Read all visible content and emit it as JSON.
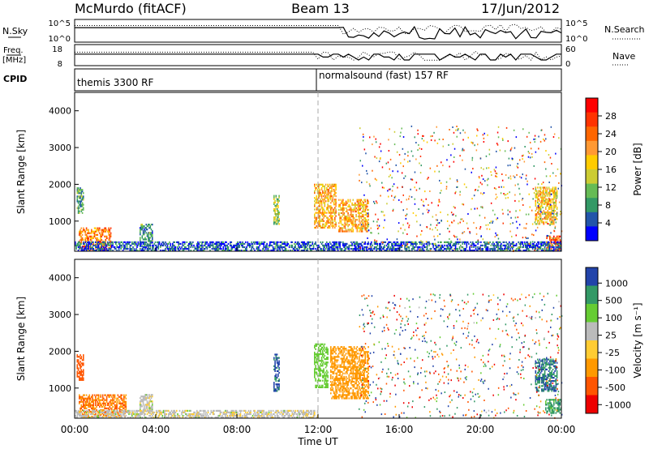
{
  "header": {
    "station": "McMurdo (fitACF)",
    "beam": "Beam 13",
    "date": "17/Jun/2012"
  },
  "params": {
    "nsky_label": "N.Sky",
    "nsky_ticks": [
      "10^5",
      "10^0"
    ],
    "nsearch_label": "N.Search",
    "nsearch_ticks": [
      "10^5",
      "10^0"
    ],
    "freq_label": "Freq.",
    "freq_unit": "[MHz]",
    "freq_ticks": [
      "18",
      "8"
    ],
    "nave_label": "Nave",
    "nave_ticks": [
      "60",
      "0"
    ],
    "cpid_label": "CPID",
    "cpid_segments": [
      {
        "label": "themis 3300 RF",
        "start_hour": 0
      },
      {
        "label": "normalsound (fast) 157 RF",
        "start_hour": 12
      }
    ]
  },
  "axes": {
    "x_ticks": [
      "00:00",
      "04:00",
      "08:00",
      "12:00",
      "16:00",
      "20:00",
      "00:00"
    ],
    "x_label": "Time UT",
    "y_ticks": [
      "1000",
      "2000",
      "3000",
      "4000"
    ],
    "y_label": "Slant Range [km]"
  },
  "power_colorbar": {
    "label": "Power [dB]",
    "ticks": [
      "28",
      "24",
      "20",
      "16",
      "12",
      "8",
      "4"
    ],
    "colors": [
      "#ff0000",
      "#ff3300",
      "#ff6600",
      "#ff9933",
      "#ffcc00",
      "#cccc33",
      "#66bb55",
      "#339966",
      "#2255aa",
      "#0000ff"
    ]
  },
  "velocity_colorbar": {
    "label": "Velocity [m s⁻¹]",
    "ticks": [
      "1000",
      "500",
      "100",
      "25",
      "-25",
      "-100",
      "-500",
      "-1000"
    ],
    "colors": [
      "#2244aa",
      "#339966",
      "#66cc33",
      "#bbbbbb",
      "#ffcc33",
      "#ff9900",
      "#ff5500",
      "#ee0000"
    ]
  },
  "chart_data": [
    {
      "type": "heatmap",
      "panel": "power",
      "xlabel": "Time UT",
      "ylabel": "Slant Range [km]",
      "xlim_hours": [
        0,
        24
      ],
      "ylim_km": [
        180,
        4500
      ],
      "value_label": "Power [dB]",
      "regions": [
        {
          "t0": 0.2,
          "t1": 1.8,
          "r0": 200,
          "r1": 800,
          "level": 0.7
        },
        {
          "t0": 0.1,
          "t1": 0.4,
          "r0": 1200,
          "r1": 1900,
          "level": 0.3
        },
        {
          "t0": 3.2,
          "t1": 3.8,
          "r0": 300,
          "r1": 900,
          "level": 0.25
        },
        {
          "t0": 9.8,
          "t1": 10.1,
          "r0": 900,
          "r1": 1700,
          "level": 0.4
        },
        {
          "t0": 11.8,
          "t1": 12.9,
          "r0": 800,
          "r1": 2000,
          "level": 0.6
        },
        {
          "t0": 13.0,
          "t1": 14.5,
          "r0": 700,
          "r1": 1600,
          "level": 0.6
        },
        {
          "t0": 22.7,
          "t1": 23.8,
          "r0": 900,
          "r1": 1900,
          "level": 0.55
        },
        {
          "t0": 23.2,
          "t1": 24.0,
          "r0": 200,
          "r1": 600,
          "level": 0.8
        },
        {
          "t0": 0.0,
          "t1": 24.0,
          "r0": 180,
          "r1": 450,
          "level": 0.15
        }
      ]
    },
    {
      "type": "heatmap",
      "panel": "velocity",
      "xlabel": "Time UT",
      "ylabel": "Slant Range [km]",
      "xlim_hours": [
        0,
        24
      ],
      "ylim_km": [
        180,
        4500
      ],
      "value_label": "Velocity [m s⁻¹]",
      "regions": [
        {
          "t0": 0.2,
          "t1": 2.5,
          "r0": 200,
          "r1": 800,
          "velocity": -300
        },
        {
          "t0": 0.1,
          "t1": 0.4,
          "r0": 1200,
          "r1": 1900,
          "velocity": -500
        },
        {
          "t0": 3.2,
          "t1": 3.8,
          "r0": 300,
          "r1": 800,
          "velocity": 25
        },
        {
          "t0": 9.8,
          "t1": 10.1,
          "r0": 900,
          "r1": 1900,
          "velocity": 1000
        },
        {
          "t0": 11.8,
          "t1": 12.5,
          "r0": 1000,
          "r1": 2200,
          "velocity": 100
        },
        {
          "t0": 12.6,
          "t1": 14.5,
          "r0": 700,
          "r1": 2100,
          "velocity": -150
        },
        {
          "t0": 22.7,
          "t1": 23.8,
          "r0": 900,
          "r1": 1800,
          "velocity": 700
        },
        {
          "t0": 23.2,
          "t1": 24.0,
          "r0": 300,
          "r1": 700,
          "velocity": 400
        },
        {
          "t0": 0.0,
          "t1": 12.0,
          "r0": 180,
          "r1": 400,
          "velocity": 25
        }
      ]
    }
  ]
}
